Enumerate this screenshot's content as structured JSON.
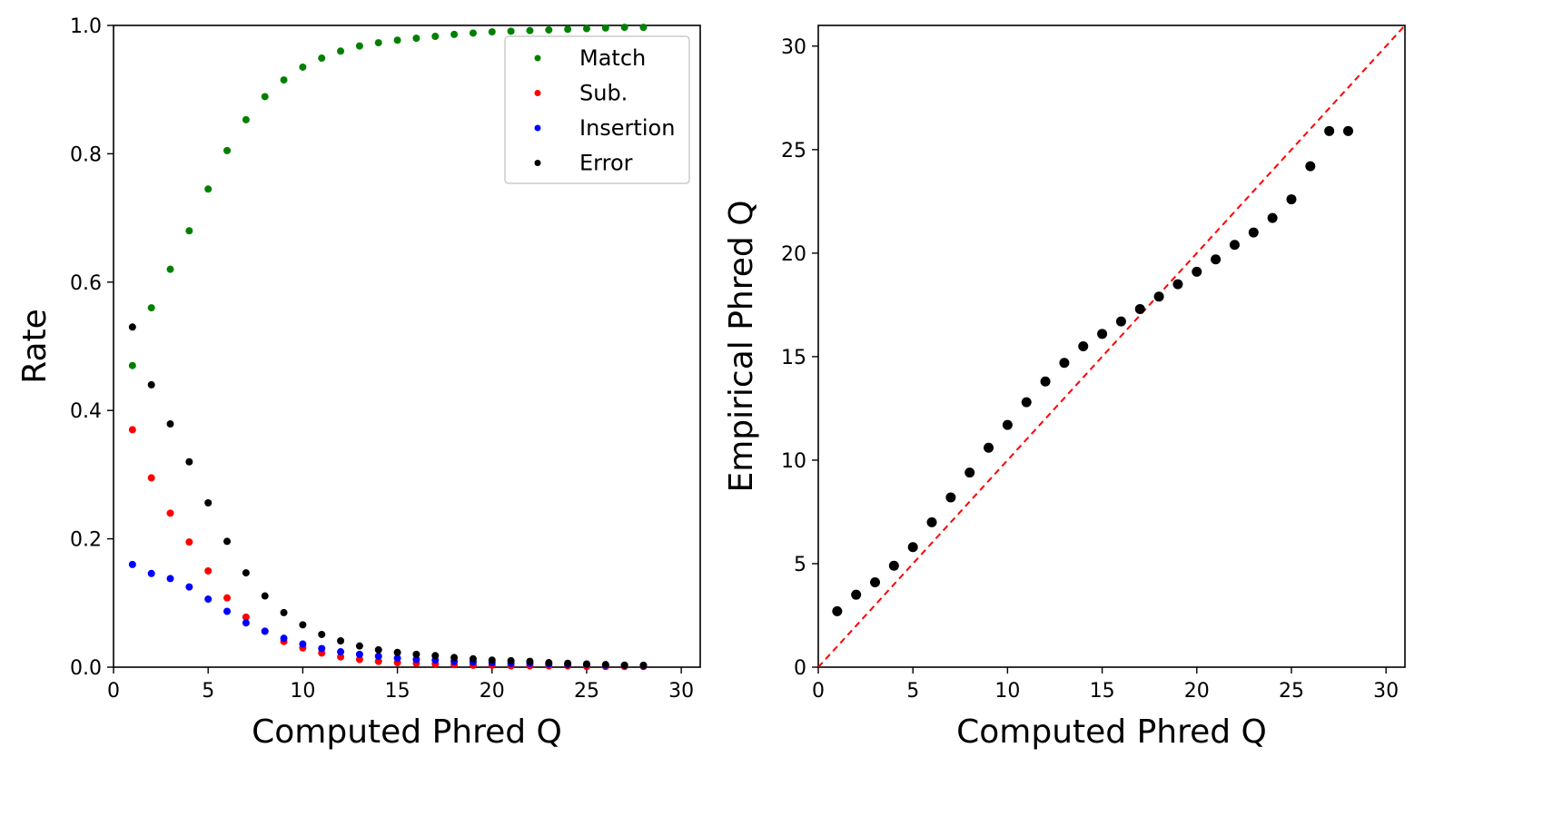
{
  "chart_data": [
    {
      "type": "scatter",
      "xlabel": "Computed Phred Q",
      "ylabel": "Rate",
      "xlim": [
        0,
        31
      ],
      "ylim": [
        0,
        1.0
      ],
      "xticks": [
        "0",
        "5",
        "10",
        "15",
        "20",
        "25",
        "30"
      ],
      "yticks": [
        "0.0",
        "0.2",
        "0.4",
        "0.6",
        "0.8",
        "1.0"
      ],
      "grid": false,
      "legend_position": "top-right",
      "x": [
        1,
        2,
        3,
        4,
        5,
        6,
        7,
        8,
        9,
        10,
        11,
        12,
        13,
        14,
        15,
        16,
        17,
        18,
        19,
        20,
        21,
        22,
        23,
        24,
        25,
        26,
        27,
        28
      ],
      "series": [
        {
          "name": "Match",
          "color": "#008000",
          "values": [
            0.47,
            0.56,
            0.62,
            0.68,
            0.745,
            0.805,
            0.853,
            0.889,
            0.915,
            0.935,
            0.949,
            0.96,
            0.968,
            0.973,
            0.977,
            0.98,
            0.983,
            0.986,
            0.988,
            0.99,
            0.991,
            0.992,
            0.993,
            0.994,
            0.995,
            0.996,
            0.997,
            0.997
          ]
        },
        {
          "name": "Sub.",
          "color": "#ff0000",
          "values": [
            0.37,
            0.295,
            0.24,
            0.195,
            0.15,
            0.108,
            0.078,
            0.056,
            0.04,
            0.03,
            0.022,
            0.016,
            0.012,
            0.009,
            0.007,
            0.006,
            0.005,
            0.004,
            0.003,
            0.003,
            0.002,
            0.002,
            0.002,
            0.002,
            0.001,
            0.001,
            0.001,
            0.001
          ]
        },
        {
          "name": "Insertion",
          "color": "#0000ff",
          "values": [
            0.16,
            0.146,
            0.138,
            0.125,
            0.106,
            0.087,
            0.069,
            0.056,
            0.045,
            0.036,
            0.029,
            0.024,
            0.02,
            0.017,
            0.014,
            0.012,
            0.011,
            0.009,
            0.008,
            0.007,
            0.006,
            0.006,
            0.005,
            0.004,
            0.004,
            0.003,
            0.003,
            0.002
          ]
        },
        {
          "name": "Error",
          "color": "#000000",
          "values": [
            0.53,
            0.44,
            0.379,
            0.32,
            0.256,
            0.196,
            0.147,
            0.111,
            0.085,
            0.066,
            0.051,
            0.041,
            0.033,
            0.027,
            0.023,
            0.02,
            0.018,
            0.015,
            0.013,
            0.011,
            0.01,
            0.009,
            0.007,
            0.006,
            0.005,
            0.004,
            0.003,
            0.003
          ]
        }
      ]
    },
    {
      "type": "scatter",
      "xlabel": "Computed Phred Q",
      "ylabel": "Empirical Phred Q",
      "xlim": [
        0,
        31
      ],
      "ylim": [
        0,
        31
      ],
      "xticks": [
        "0",
        "5",
        "10",
        "15",
        "20",
        "25",
        "30"
      ],
      "yticks": [
        "0",
        "5",
        "10",
        "15",
        "20",
        "25",
        "30"
      ],
      "grid": false,
      "reference_line": {
        "style": "dashed",
        "color": "#ff0000",
        "from": [
          0,
          0
        ],
        "to": [
          31,
          31
        ]
      },
      "x": [
        1,
        2,
        3,
        4,
        5,
        6,
        7,
        8,
        9,
        10,
        11,
        12,
        13,
        14,
        15,
        16,
        17,
        18,
        19,
        20,
        21,
        22,
        23,
        24,
        25,
        26,
        27,
        28
      ],
      "series": [
        {
          "color": "#000000",
          "values": [
            2.7,
            3.5,
            4.1,
            4.9,
            5.8,
            7.0,
            8.2,
            9.4,
            10.6,
            11.7,
            12.8,
            13.8,
            14.7,
            15.5,
            16.1,
            16.7,
            17.3,
            17.9,
            18.5,
            19.1,
            19.7,
            20.4,
            21.0,
            21.7,
            22.6,
            24.2,
            25.9,
            25.9
          ]
        }
      ]
    }
  ]
}
